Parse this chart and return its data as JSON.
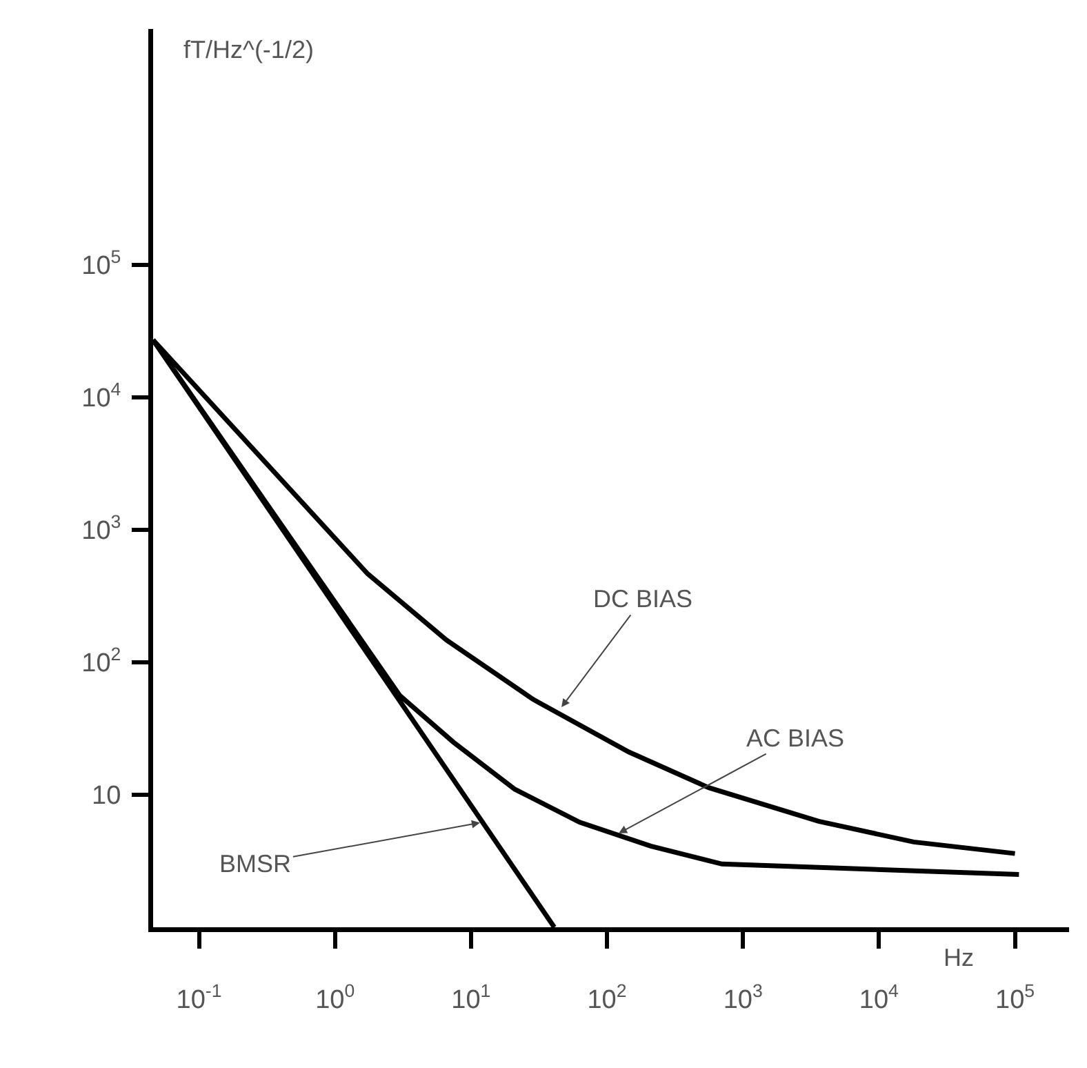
{
  "chart_data": {
    "type": "line",
    "xlabel": "Hz",
    "ylabel": "fT/Hz^(-1/2)",
    "log": "xy",
    "xlim": [
      0.046,
      250000
    ],
    "ylim": [
      1,
      6000000
    ],
    "xticks": [
      {
        "value": 0.1,
        "label": "10$^{-1}$"
      },
      {
        "value": 1,
        "label": "10$^{0}$"
      },
      {
        "value": 10,
        "label": "10$^{1}$"
      },
      {
        "value": 100,
        "label": "10$^{2}$"
      },
      {
        "value": 1000,
        "label": "10$^{3}$"
      },
      {
        "value": 10000,
        "label": "10$^{4}$"
      },
      {
        "value": 100000,
        "label": "10$^{5}$"
      }
    ],
    "yticks": [
      10,
      {
        "value": 100,
        "label": "10$^{2}$"
      },
      {
        "value": 1000,
        "label": "10$^{3}$"
      },
      {
        "value": 10000,
        "label": "10$^{4}$"
      },
      {
        "value": 100000,
        "label": "10$^{5}$"
      }
    ],
    "grid": false,
    "marker": "none",
    "line_style": "solid",
    "series": [
      {
        "color": "#000000",
        "x": [
          0.046,
          1.74,
          6.6,
          29,
          145,
          560,
          3600,
          18000,
          100000
        ],
        "values": [
          27000,
          464,
          147,
          52,
          21,
          11.3,
          6.3,
          4.4,
          3.6
        ]
      },
      {
        "color": "#000000",
        "x": [
          0.046,
          3.0,
          7.4,
          21,
          63,
          210,
          700,
          107000
        ],
        "values": [
          27000,
          56,
          25,
          11,
          6.2,
          4.1,
          3.0,
          2.5
        ]
      },
      {
        "color": "#000000",
        "x": [
          0.046,
          41
        ],
        "values": [
          27000,
          1
        ]
      }
    ],
    "annotations": [
      {
        "text": "DC BIAS",
        "x": 45,
        "y": 44
      },
      {
        "text": "AC BIAS",
        "x": 117,
        "y": 5
      },
      {
        "text": "BMSR",
        "x": 12.2,
        "y": 6.2
      }
    ]
  }
}
